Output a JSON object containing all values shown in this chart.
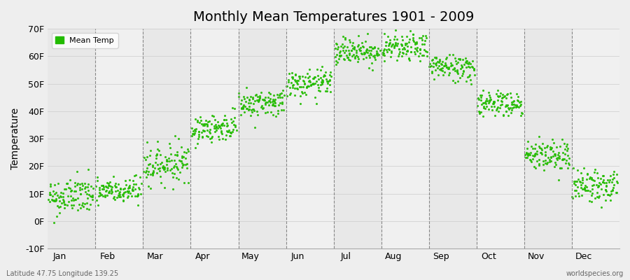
{
  "title": "Monthly Mean Temperatures 1901 - 2009",
  "ylabel": "Temperature",
  "xlabel_labels": [
    "Jan",
    "Feb",
    "Mar",
    "Apr",
    "May",
    "Jun",
    "Jul",
    "Aug",
    "Sep",
    "Oct",
    "Nov",
    "Dec"
  ],
  "ylim": [
    -10,
    70
  ],
  "ytick_labels": [
    "-10F",
    "0F",
    "10F",
    "20F",
    "30F",
    "40F",
    "50F",
    "60F",
    "70F"
  ],
  "ytick_values": [
    -10,
    0,
    10,
    20,
    30,
    40,
    50,
    60,
    70
  ],
  "dot_color": "#22BB00",
  "bg_color": "#EEEEEE",
  "plot_bg_color": "#F0F0F0",
  "footer_left": "Latitude 47.75 Longitude 139.25",
  "footer_right": "worldspecies.org",
  "legend_label": "Mean Temp",
  "num_years": 109,
  "monthly_means": [
    9,
    11,
    21,
    34,
    43,
    50,
    62,
    63,
    56,
    43,
    24,
    13
  ],
  "monthly_stds": [
    3.5,
    2.5,
    3.5,
    2.5,
    2.5,
    2.5,
    2.5,
    2.5,
    2.5,
    2.5,
    3.0,
    3.0
  ],
  "x_slope_per_month": [
    0.8,
    0.5,
    1.5,
    1.5,
    1.0,
    0.5,
    0.3,
    -0.3,
    -0.8,
    -1.5,
    -1.5,
    -0.3
  ]
}
